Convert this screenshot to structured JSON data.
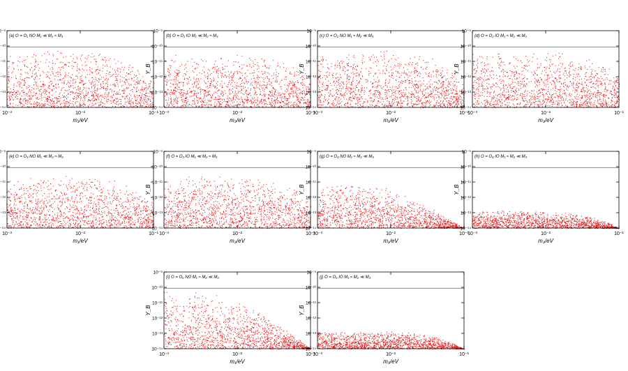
{
  "figure": {
    "colors": {
      "scatter": "#e60000",
      "reference_line": "#888888",
      "axis": "#000000"
    },
    "shared_axes": {
      "type": "scatter",
      "x_scale": "log",
      "y_scale": "log",
      "xlim": [
        0.001,
        0.1
      ],
      "ylim": [
        1e-14,
        1e-09
      ],
      "x_ticks": [
        0.001,
        0.01,
        0.1
      ],
      "y_ticks": [
        1e-14,
        1e-13,
        1e-12,
        1e-11,
        1e-10,
        1e-09
      ],
      "x_tick_labels": [
        "10⁻³",
        "10⁻²",
        "10⁻¹"
      ],
      "y_tick_labels": [
        "10⁻¹⁴",
        "10⁻¹³",
        "10⁻¹²",
        "10⁻¹¹",
        "10⁻¹⁰",
        "10⁻⁹"
      ],
      "ylabel": "Y_B",
      "reference_line_y": 8.7e-11,
      "grid": false
    }
  },
  "chart_data": [
    {
      "type": "scatter",
      "title": "(a) O = O₁  NO  M₁ ≪ M₂ ≈ M₃",
      "xlabel": "m₁/eV",
      "ylabel": "Y_B",
      "upper_envelope": [
        [
          0.001,
          5.5e-11
        ],
        [
          0.005,
          5.5e-11
        ],
        [
          0.01,
          5e-11
        ],
        [
          0.02,
          3.5e-11
        ],
        [
          0.04,
          1.5e-11
        ],
        [
          0.07,
          3e-12
        ],
        [
          0.1,
          5e-13
        ]
      ],
      "lower_bound": 1e-14
    },
    {
      "type": "scatter",
      "title": "(b) O = O₁  IO  M₁ ≪ M₂ ≈ M₃",
      "xlabel": "m₃/eV",
      "ylabel": "Y_B",
      "upper_envelope": [
        [
          0.001,
          2.8e-11
        ],
        [
          0.003,
          3.3e-11
        ],
        [
          0.006,
          3.5e-11
        ],
        [
          0.01,
          3.3e-11
        ],
        [
          0.02,
          2.5e-11
        ],
        [
          0.04,
          1.2e-11
        ],
        [
          0.07,
          3.5e-12
        ],
        [
          0.1,
          1e-12
        ]
      ],
      "lower_bound": 1e-14
    },
    {
      "type": "scatter",
      "title": "(c) O = O₂  NO  M₁ ≈ M₂ ≪ M₃",
      "xlabel": "m₁/eV",
      "ylabel": "Y_B",
      "upper_envelope": [
        [
          0.001,
          5.5e-11
        ],
        [
          0.005,
          5.5e-11
        ],
        [
          0.01,
          5e-11
        ],
        [
          0.02,
          3.5e-11
        ],
        [
          0.04,
          1.5e-11
        ],
        [
          0.07,
          3e-12
        ],
        [
          0.1,
          5e-13
        ]
      ],
      "lower_bound": 1e-14
    },
    {
      "type": "scatter",
      "title": "(d) O = O₂  IO  M₁ ≈ M₂ ≪ M₃",
      "xlabel": "m₃/eV",
      "ylabel": "Y_B",
      "upper_envelope": [
        [
          0.001,
          5e-11
        ],
        [
          0.003,
          5.8e-11
        ],
        [
          0.006,
          6e-11
        ],
        [
          0.01,
          5.6e-11
        ],
        [
          0.02,
          4e-11
        ],
        [
          0.04,
          1.8e-11
        ],
        [
          0.07,
          5e-12
        ],
        [
          0.1,
          1.5e-12
        ]
      ],
      "lower_bound": 1e-14
    },
    {
      "type": "scatter",
      "title": "(e) O = O₃  NO  M₁ ≪ M₂ ≈ M₃",
      "xlabel": "m₁/eV",
      "ylabel": "Y_B",
      "upper_envelope": [
        [
          0.001,
          2.2e-11
        ],
        [
          0.003,
          2.8e-11
        ],
        [
          0.006,
          3e-11
        ],
        [
          0.01,
          2.8e-11
        ],
        [
          0.02,
          2e-11
        ],
        [
          0.04,
          9e-12
        ],
        [
          0.07,
          2.5e-12
        ],
        [
          0.1,
          7e-13
        ]
      ],
      "lower_bound": 1e-14
    },
    {
      "type": "scatter",
      "title": "(f) O = O₃  IO  M₁ ≪ M₂ ≈ M₃",
      "xlabel": "m₃/eV",
      "ylabel": "Y_B",
      "upper_envelope": [
        [
          0.001,
          2.2e-11
        ],
        [
          0.003,
          2.8e-11
        ],
        [
          0.006,
          3e-11
        ],
        [
          0.01,
          2.8e-11
        ],
        [
          0.02,
          2e-11
        ],
        [
          0.04,
          9e-12
        ],
        [
          0.07,
          2.5e-12
        ],
        [
          0.1,
          7e-13
        ]
      ],
      "lower_bound": 1e-14
    },
    {
      "type": "scatter",
      "title": "(g) O = O₄  NO  M₁ ≈ M₂ ≪ M₃",
      "xlabel": "m₁/eV",
      "ylabel": "Y_B",
      "upper_envelope": [
        [
          0.001,
          1e-11
        ],
        [
          0.003,
          9e-12
        ],
        [
          0.006,
          6e-12
        ],
        [
          0.01,
          3.5e-12
        ],
        [
          0.02,
          9e-13
        ],
        [
          0.04,
          1.5e-13
        ],
        [
          0.07,
          3e-14
        ],
        [
          0.1,
          1e-14
        ]
      ],
      "lower_bound": 1e-14
    },
    {
      "type": "scatter",
      "title": "(h) O = O₄  IO  M₁ ≈ M₂ ≪ M₃",
      "xlabel": "m₃/eV",
      "ylabel": "Y_B",
      "upper_envelope": [
        [
          0.001,
          1.4e-13
        ],
        [
          0.005,
          1.4e-13
        ],
        [
          0.01,
          1.3e-13
        ],
        [
          0.02,
          1.1e-13
        ],
        [
          0.04,
          6e-14
        ],
        [
          0.07,
          2.5e-14
        ],
        [
          0.1,
          1e-14
        ]
      ],
      "lower_bound": 1e-14
    },
    {
      "type": "scatter",
      "title": "(i) O = O₅  NO  M₁ ≈ M₂ ≪ M₃",
      "xlabel": "m₁/eV",
      "ylabel": "Y_B",
      "upper_envelope": [
        [
          0.001,
          8e-11
        ],
        [
          0.003,
          6e-11
        ],
        [
          0.006,
          3e-11
        ],
        [
          0.01,
          1.2e-11
        ],
        [
          0.02,
          2.5e-12
        ],
        [
          0.04,
          3e-13
        ],
        [
          0.07,
          4e-14
        ],
        [
          0.1,
          1e-14
        ]
      ],
      "lower_bound": 1e-14
    },
    {
      "type": "scatter",
      "title": "(j) O = O₅  IO  M₁ ≈ M₂ ≪ M₃",
      "xlabel": "m₃/eV",
      "ylabel": "Y_B",
      "upper_envelope": [
        [
          0.001,
          1.5e-13
        ],
        [
          0.005,
          1.5e-13
        ],
        [
          0.01,
          1.4e-13
        ],
        [
          0.02,
          1.2e-13
        ],
        [
          0.04,
          7e-14
        ],
        [
          0.07,
          2.5e-14
        ],
        [
          0.1,
          1e-14
        ]
      ],
      "lower_bound": 1e-14
    }
  ]
}
